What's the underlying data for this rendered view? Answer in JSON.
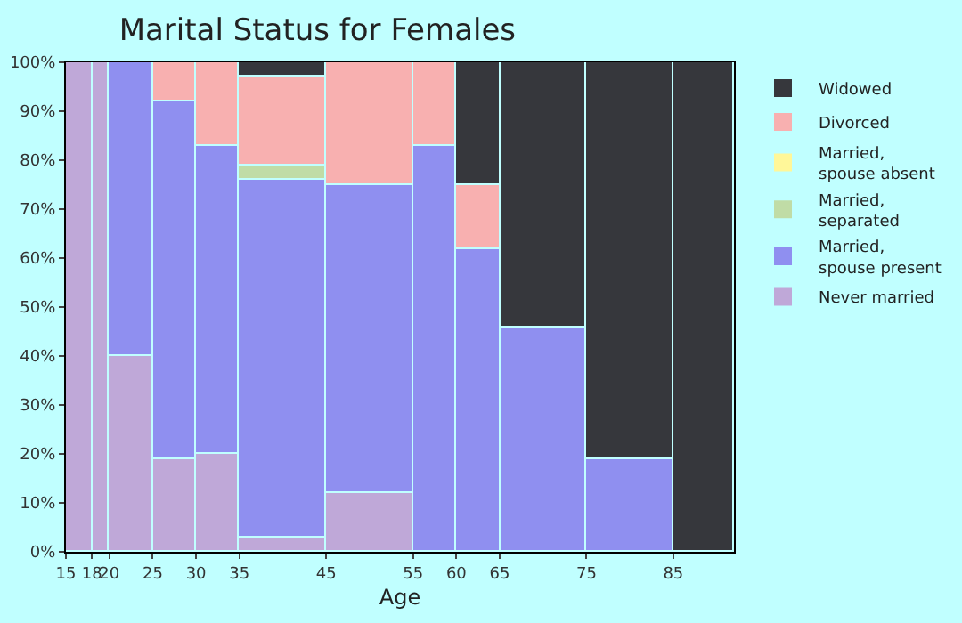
{
  "chart_data": {
    "type": "bar",
    "title": "Marital Status for Females",
    "xlabel": "Age",
    "stacked": true,
    "x": [
      16.5,
      19,
      22.5,
      27.5,
      32.5,
      40,
      50,
      57.5,
      62.5,
      70,
      80,
      88.5
    ],
    "series": [
      {
        "name": "Never married",
        "color": "#bfa8d8",
        "values": [
          100,
          100,
          40,
          19,
          20,
          3,
          12,
          0,
          0,
          0,
          0,
          0
        ]
      },
      {
        "name": "Married,\nspouse present",
        "color": "#8f8ff0",
        "values": [
          0,
          0,
          60,
          73,
          63,
          73,
          63,
          83,
          62,
          46,
          19,
          0
        ]
      },
      {
        "name": "Married,\nseparated",
        "color": "#c0dca6",
        "values": [
          0,
          0,
          0,
          0,
          0,
          3,
          0,
          0,
          0,
          0,
          0,
          0
        ]
      },
      {
        "name": "Married,\nspouse absent",
        "color": "#fff799",
        "values": [
          0,
          0,
          0,
          0,
          0,
          0,
          0,
          0,
          0,
          0,
          0,
          0
        ]
      },
      {
        "name": "Divorced",
        "color": "#f8b0b0",
        "values": [
          0,
          0,
          0,
          8,
          17,
          18,
          25,
          17,
          13,
          0,
          0,
          0
        ]
      },
      {
        "name": "Widowed",
        "color": "#36373c",
        "values": [
          0,
          0,
          0,
          0,
          0,
          3,
          0,
          0,
          25,
          54,
          81,
          100
        ]
      }
    ],
    "xlim": [
      15,
      92
    ],
    "xticks": [
      15,
      18,
      20,
      25,
      30,
      35,
      45,
      55,
      60,
      65,
      75,
      85
    ],
    "ylim": [
      0,
      100
    ],
    "yticks": [
      {
        "value": 0,
        "label": "0%"
      },
      {
        "value": 10,
        "label": "10%"
      },
      {
        "value": 20,
        "label": "20%"
      },
      {
        "value": 30,
        "label": "30%"
      },
      {
        "value": 40,
        "label": "40%"
      },
      {
        "value": 50,
        "label": "50%"
      },
      {
        "value": 60,
        "label": "60%"
      },
      {
        "value": 70,
        "label": "70%"
      },
      {
        "value": 80,
        "label": "80%"
      },
      {
        "value": 90,
        "label": "90%"
      },
      {
        "value": 100,
        "label": "100%"
      }
    ],
    "legend": "right"
  }
}
